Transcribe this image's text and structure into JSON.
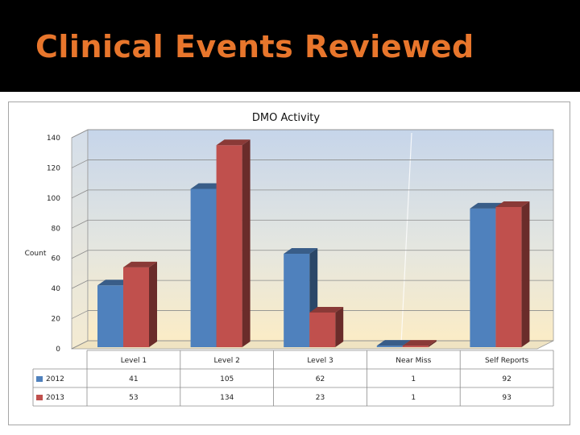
{
  "slide": {
    "title": "Clinical Events Reviewed"
  },
  "colors": {
    "title": "#e8762c",
    "background": "#000000",
    "series_2012": "#4f81bd",
    "series_2013": "#c0504d"
  },
  "chart_data": {
    "type": "bar",
    "variant": "3d-clustered-column-with-data-table",
    "title": "DMO Activity",
    "xlabel": "",
    "ylabel": "Count",
    "categories": [
      "Level 1",
      "Level 2",
      "Level 3",
      "Near Miss",
      "Self Reports"
    ],
    "series": [
      {
        "name": "2012",
        "color": "#4f81bd",
        "values": [
          41,
          105,
          62,
          1,
          92
        ]
      },
      {
        "name": "2013",
        "color": "#c0504d",
        "values": [
          53,
          134,
          23,
          1,
          93
        ]
      }
    ],
    "ylim": [
      0,
      140
    ],
    "yticks": [
      0,
      20,
      40,
      60,
      80,
      100,
      120,
      140
    ],
    "grid": true,
    "legend": "data-table"
  }
}
